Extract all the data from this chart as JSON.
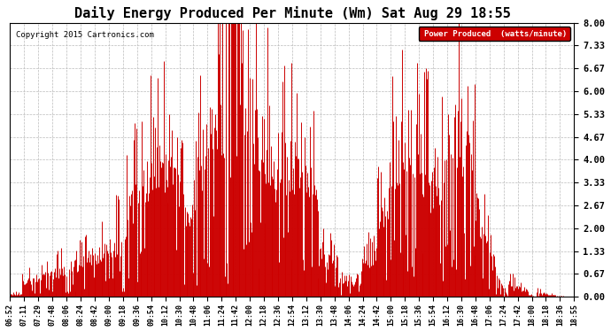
{
  "title": "Daily Energy Produced Per Minute (Wm) Sat Aug 29 18:55",
  "copyright": "Copyright 2015 Cartronics.com",
  "legend_label": "Power Produced  (watts/minute)",
  "legend_bg": "#cc0000",
  "legend_text_color": "#ffffff",
  "line_color": "#cc0000",
  "bg_color": "#ffffff",
  "plot_bg": "#ffffff",
  "grid_color": "#bbbbbb",
  "title_fontsize": 11,
  "ylim": [
    0.0,
    8.0
  ],
  "yticks": [
    0.0,
    0.67,
    1.33,
    2.0,
    2.67,
    3.33,
    4.0,
    4.67,
    5.33,
    6.0,
    6.67,
    7.33,
    8.0
  ],
  "ytick_labels": [
    "0.00",
    "0.67",
    "1.33",
    "2.00",
    "2.67",
    "3.33",
    "4.00",
    "4.67",
    "5.33",
    "6.00",
    "6.67",
    "7.33",
    "8.00"
  ],
  "xtick_labels": [
    "06:52",
    "07:11",
    "07:29",
    "07:48",
    "08:06",
    "08:24",
    "08:42",
    "09:00",
    "09:18",
    "09:36",
    "09:54",
    "10:12",
    "10:30",
    "10:48",
    "11:06",
    "11:24",
    "11:42",
    "12:00",
    "12:18",
    "12:36",
    "12:54",
    "13:12",
    "13:30",
    "13:48",
    "14:06",
    "14:24",
    "14:42",
    "15:00",
    "15:18",
    "15:36",
    "15:54",
    "16:12",
    "16:30",
    "16:48",
    "17:06",
    "17:24",
    "17:42",
    "18:00",
    "18:18",
    "18:36",
    "18:55"
  ]
}
